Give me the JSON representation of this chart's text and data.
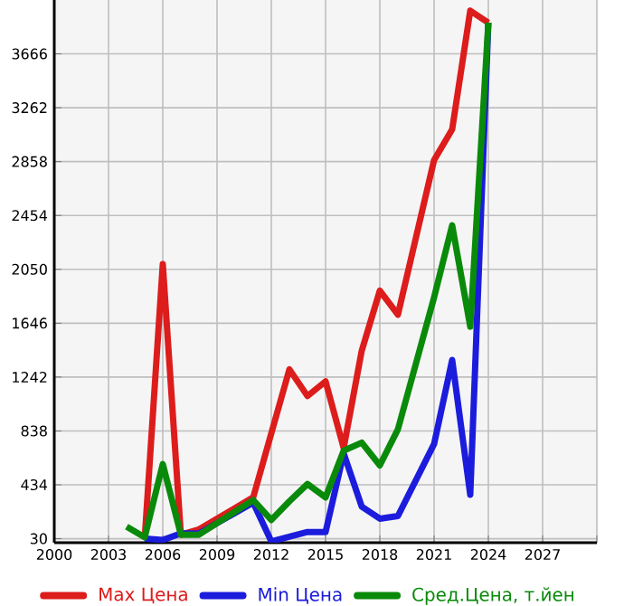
{
  "chart_data": {
    "type": "line",
    "xlim": [
      2000,
      2030
    ],
    "ylim": [
      0,
      4070
    ],
    "xticks": [
      2000,
      2003,
      2006,
      2009,
      2012,
      2015,
      2018,
      2021,
      2024,
      2027,
      {
        "value": 2030,
        "label": null
      }
    ],
    "yticks": [
      30,
      434,
      838,
      1242,
      1646,
      2050,
      2454,
      2858,
      3262,
      3666
    ],
    "grid": true,
    "legend": "bottom",
    "marker": "none",
    "line_style": "solid",
    "series": [
      {
        "name": "Max Цена",
        "color": "#dd1c1c",
        "x": [
          2005,
          2006,
          2007,
          2008,
          2011,
          2013,
          2014,
          2015,
          2016,
          2017,
          2018,
          2019,
          2021,
          2022,
          2023,
          2024
        ],
        "values": [
          30,
          2090,
          60,
          100,
          340,
          1300,
          1100,
          1210,
          710,
          1440,
          1890,
          1710,
          2870,
          3100,
          3990,
          3900
        ]
      },
      {
        "name": "Min Цена",
        "color": "#1c1cdd",
        "x": [
          2005,
          2006,
          2007,
          2008,
          2011,
          2012,
          2014,
          2015,
          2016,
          2017,
          2018,
          2019,
          2021,
          2022,
          2023,
          2024
        ],
        "values": [
          30,
          20,
          70,
          70,
          300,
          10,
          80,
          80,
          670,
          270,
          180,
          200,
          740,
          1370,
          360,
          3900
        ]
      },
      {
        "name": "Сред.Цена, т.йен",
        "color": "#0a8a0a",
        "x": [
          2004,
          2005,
          2006,
          2007,
          2008,
          2011,
          2012,
          2013,
          2014,
          2015,
          2016,
          2017,
          2018,
          2019,
          2021,
          2022,
          2023,
          2024
        ],
        "values": [
          120,
          40,
          590,
          60,
          60,
          320,
          170,
          310,
          440,
          340,
          690,
          750,
          580,
          850,
          1840,
          2380,
          1620,
          3900
        ]
      }
    ]
  }
}
